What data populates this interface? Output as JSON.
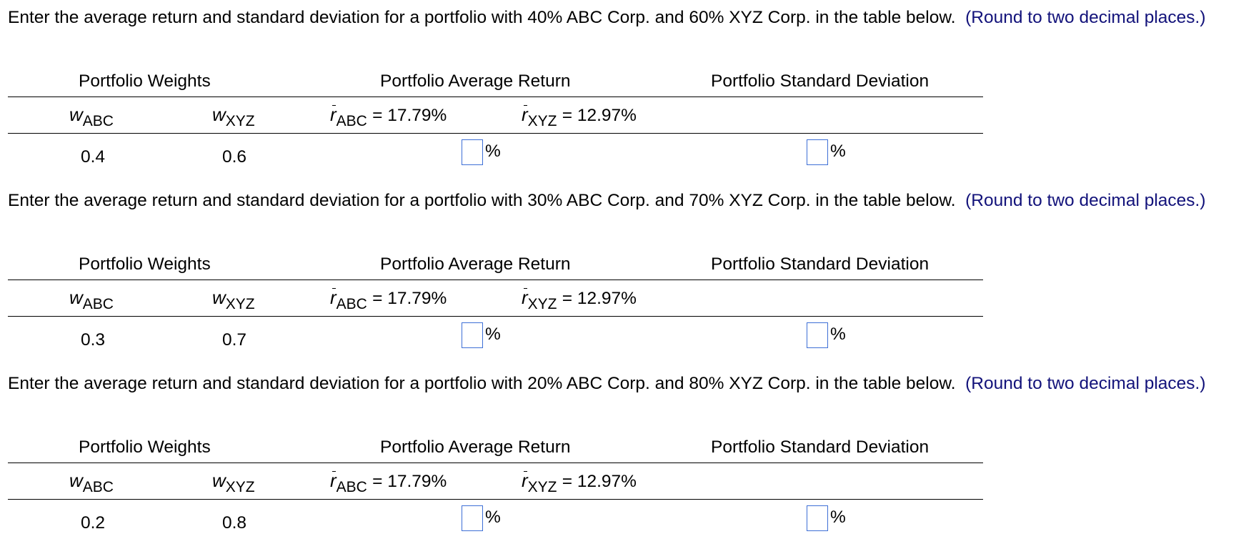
{
  "labels": {
    "portfolio_weights": "Portfolio Weights",
    "portfolio_average_return": "Portfolio Average Return",
    "portfolio_standard_deviation": "Portfolio Standard Deviation",
    "w_var": "w",
    "r_var": "r",
    "sub_abc": "ABC",
    "sub_xyz": "XYZ",
    "r_abc_value": "= 17.79%",
    "r_xyz_value": "= 12.97%",
    "percent": "%"
  },
  "problems": [
    {
      "prompt": "Enter the average return and standard deviation for a portfolio with 40% ABC Corp. and 60% XYZ Corp. in the table below.",
      "round_hint": "(Round to two decimal places.)",
      "w_abc": "0.4",
      "w_xyz": "0.6",
      "avg_return_value": "",
      "std_dev_value": ""
    },
    {
      "prompt": "Enter the average return and standard deviation for a portfolio with 30% ABC Corp. and 70% XYZ Corp. in the table below.",
      "round_hint": "(Round to two decimal places.)",
      "w_abc": "0.3",
      "w_xyz": "0.7",
      "avg_return_value": "",
      "std_dev_value": ""
    },
    {
      "prompt": "Enter the average return and standard deviation for a portfolio with 20% ABC Corp. and 80% XYZ Corp. in the table below.",
      "round_hint": "(Round to two decimal places.)",
      "w_abc": "0.2",
      "w_xyz": "0.8",
      "avg_return_value": "",
      "std_dev_value": ""
    }
  ],
  "colors": {
    "round_hint": "#12127a",
    "input_border": "#3d6fd6"
  }
}
